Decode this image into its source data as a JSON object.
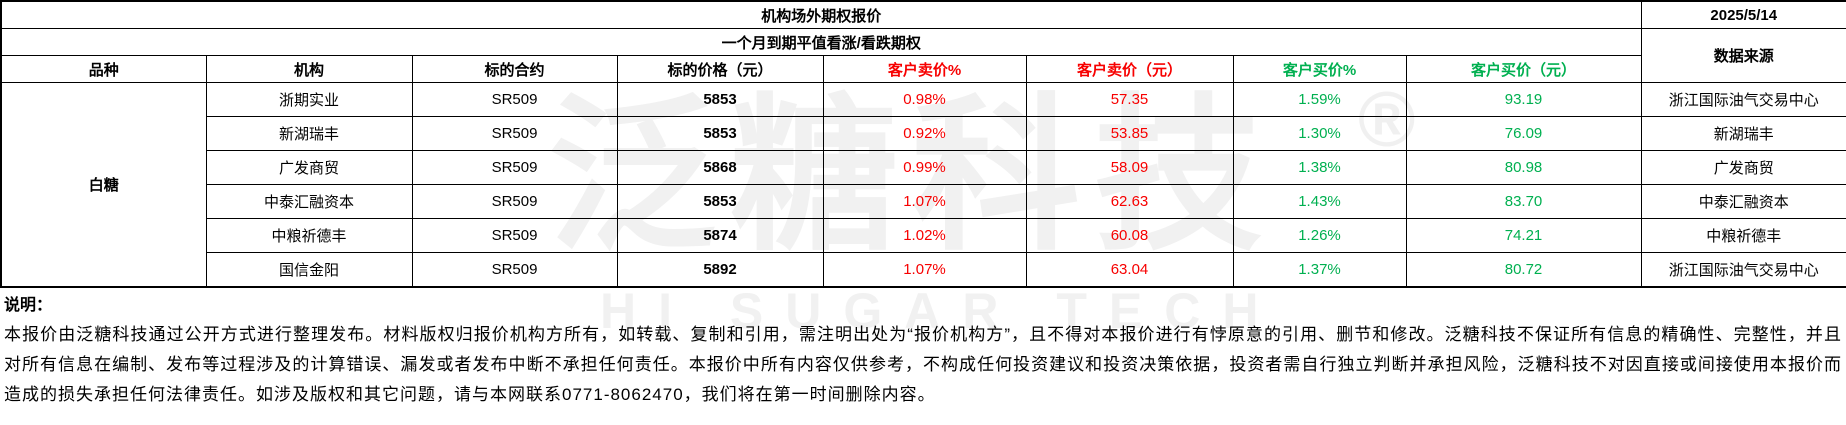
{
  "report": {
    "title": "机构场外期权报价",
    "date": "2025/5/14",
    "subtitle": "一个月到期平值看涨/看跌期权"
  },
  "table": {
    "headers": {
      "variety": "品种",
      "institution": "机构",
      "contract": "标的合约",
      "underlying_price": "标的价格（元）",
      "sell_pct": "客户卖价%",
      "sell_price": "客户卖价（元）",
      "buy_pct": "客户买价%",
      "buy_price": "客户买价（元）",
      "source": "数据来源"
    },
    "variety": "白糖",
    "rows": [
      {
        "institution": "浙期实业",
        "contract": "SR509",
        "underlying_price": "5853",
        "sell_pct": "0.98%",
        "sell_price": "57.35",
        "buy_pct": "1.59%",
        "buy_price": "93.19",
        "source": "浙江国际油气交易中心"
      },
      {
        "institution": "新湖瑞丰",
        "contract": "SR509",
        "underlying_price": "5853",
        "sell_pct": "0.92%",
        "sell_price": "53.85",
        "buy_pct": "1.30%",
        "buy_price": "76.09",
        "source": "新湖瑞丰"
      },
      {
        "institution": "广发商贸",
        "contract": "SR509",
        "underlying_price": "5868",
        "sell_pct": "0.99%",
        "sell_price": "58.09",
        "buy_pct": "1.38%",
        "buy_price": "80.98",
        "source": "广发商贸"
      },
      {
        "institution": "中泰汇融资本",
        "contract": "SR509",
        "underlying_price": "5853",
        "sell_pct": "1.07%",
        "sell_price": "62.63",
        "buy_pct": "1.43%",
        "buy_price": "83.70",
        "source": "中泰汇融资本"
      },
      {
        "institution": "中粮祈德丰",
        "contract": "SR509",
        "underlying_price": "5874",
        "sell_pct": "1.02%",
        "sell_price": "60.08",
        "buy_pct": "1.26%",
        "buy_price": "74.21",
        "source": "中粮祈德丰"
      },
      {
        "institution": "国信金阳",
        "contract": "SR509",
        "underlying_price": "5892",
        "sell_pct": "1.07%",
        "sell_price": "63.04",
        "buy_pct": "1.37%",
        "buy_price": "80.72",
        "source": "浙江国际油气交易中心"
      }
    ]
  },
  "notes": {
    "label": "说明：",
    "body": "本报价由泛糖科技通过公开方式进行整理发布。材料版权归报价机构方所有，如转载、复制和引用，需注明出处为“报价机构方”，且不得对本报价进行有悖原意的引用、删节和修改。泛糖科技不保证所有信息的精确性、完整性，并且对所有信息在编制、发布等过程涉及的计算错误、漏发或者发布中断不承担任何责任。本报价中所有内容仅供参考，不构成任何投资建议和投资决策依据，投资者需自行独立判断并承担风险，泛糖科技不对因直接或间接使用本报价而造成的损失承担任何法律责任。如涉及版权和其它问题，请与本网联系0771-8062470，我们将在第一时间删除内容。"
  },
  "watermark": {
    "brand": "泛糖科技",
    "registered": "®",
    "subbrand": "HI SUGAR TECH"
  },
  "colors": {
    "sell_red": "#f70000",
    "buy_green": "#00b050"
  }
}
